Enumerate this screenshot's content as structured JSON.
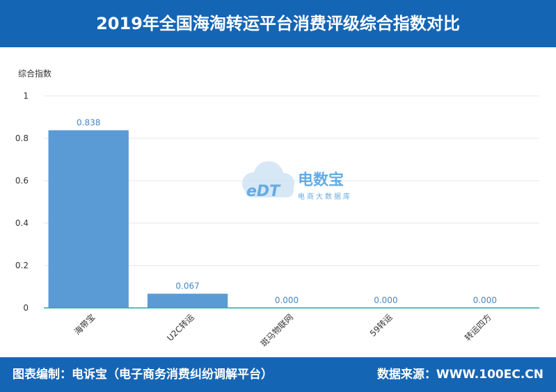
{
  "header": {
    "title": "2019年全国海淘转运平台消费评级综合指数对比"
  },
  "footer": {
    "left": "图表编制：电诉宝（电子商务消费纠纷调解平台）",
    "right": "数据来源：WWW.100EC.CN"
  },
  "watermark": {
    "name": "电数宝",
    "subtitle": "电商大数据库",
    "logo_text": "eDT"
  },
  "colors": {
    "header_bg": "#1565b5",
    "bar": "#5b9bd5",
    "value_label": "#4a86c0",
    "axis_line": "#26a9a0"
  },
  "chart_data": {
    "type": "bar",
    "ylabel": "综合指数",
    "xlabel": "",
    "ylim": [
      0,
      1
    ],
    "yticks": [
      "0",
      "0.2",
      "0.4",
      "0.6",
      "0.8",
      "1"
    ],
    "categories": [
      "海带宝",
      "U2C转运",
      "斑马物联网",
      "59转运",
      "转运四方"
    ],
    "values": [
      0.838,
      0.067,
      0.0,
      0.0,
      0.0
    ],
    "value_labels": [
      "0.838",
      "0.067",
      "0.000",
      "0.000",
      "0.000"
    ],
    "grid": true,
    "legend": "none"
  }
}
